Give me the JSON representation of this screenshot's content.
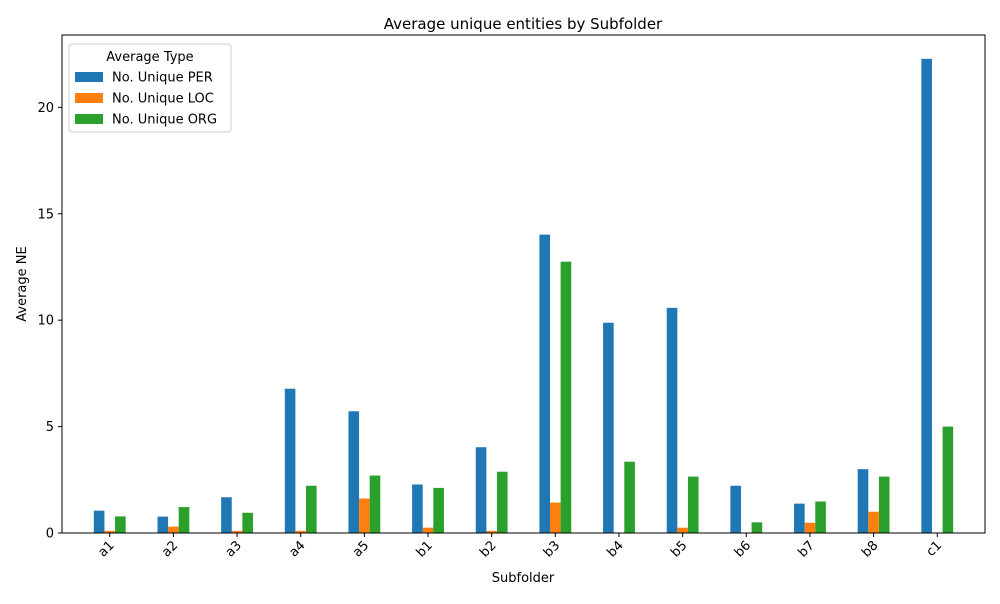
{
  "chart_data": {
    "type": "bar",
    "title": "Average unique entities by Subfolder",
    "xlabel": "Subfolder",
    "ylabel": "Average NE",
    "categories": [
      "a1",
      "a2",
      "a3",
      "a4",
      "a5",
      "b1",
      "b2",
      "b3",
      "b4",
      "b5",
      "b6",
      "b7",
      "b8",
      "c1"
    ],
    "ylim": [
      0,
      23.4
    ],
    "yticks": [
      0,
      5,
      10,
      15,
      20
    ],
    "legend": {
      "title": "Average Type",
      "placement": "top-left"
    },
    "grid": false,
    "series": [
      {
        "name": "No. Unique PER",
        "color": "#1f77b4",
        "values": [
          1.05,
          0.77,
          1.68,
          6.78,
          5.72,
          2.28,
          4.03,
          14.02,
          9.88,
          10.58,
          2.22,
          1.38,
          3.0,
          22.28
        ]
      },
      {
        "name": "No. Unique LOC",
        "color": "#ff7f0e",
        "values": [
          0.1,
          0.3,
          0.1,
          0.1,
          1.62,
          0.25,
          0.1,
          1.43,
          0.0,
          0.25,
          0.0,
          0.48,
          1.0,
          0.0
        ]
      },
      {
        "name": "No. Unique ORG",
        "color": "#2ca02c",
        "values": [
          0.78,
          1.22,
          0.95,
          2.22,
          2.7,
          2.12,
          2.88,
          12.75,
          3.35,
          2.65,
          0.5,
          1.48,
          2.65,
          5.0
        ]
      }
    ]
  }
}
